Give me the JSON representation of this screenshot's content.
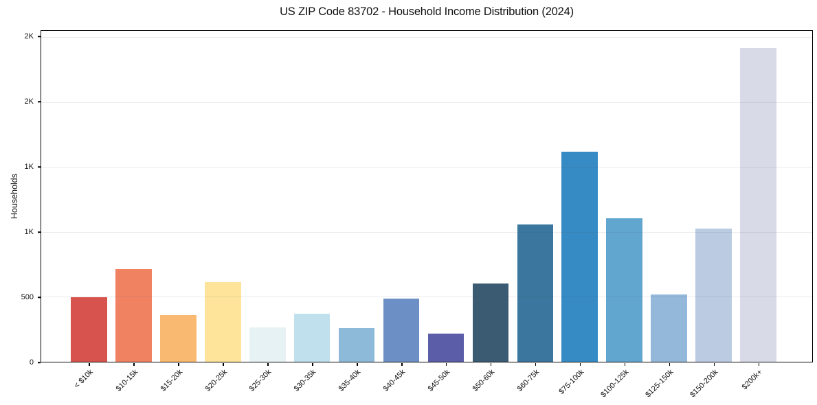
{
  "chart_data": {
    "type": "bar",
    "title": "US ZIP Code 83702 - Household Income Distribution (2024)",
    "xlabel": "",
    "ylabel": "Households",
    "categories": [
      "< $10k",
      "$10-15k",
      "$15-20k",
      "$20-25k",
      "$25-30k",
      "$30-35k",
      "$35-40k",
      "$40-45k",
      "$45-50k",
      "$50-60k",
      "$60-75k",
      "$75-100k",
      "$100-125k",
      "$125-150k",
      "$150-200k",
      "$200k+"
    ],
    "values": [
      500,
      715,
      360,
      615,
      265,
      370,
      260,
      485,
      215,
      605,
      1060,
      1620,
      1105,
      520,
      1025,
      2420
    ],
    "bar_colors": [
      "#d6534e",
      "#f08262",
      "#fab970",
      "#fde49a",
      "#e7f2f4",
      "#bfe0ec",
      "#8ebada",
      "#6c90c5",
      "#5c5da9",
      "#3a5b72",
      "#3a769d",
      "#368bc4",
      "#60a6ce",
      "#93b8da",
      "#bacbe2",
      "#d8dae8"
    ],
    "yticks": [
      {
        "value": 0,
        "label": "0"
      },
      {
        "value": 500,
        "label": "500"
      },
      {
        "value": 1000,
        "label": "1K"
      },
      {
        "value": 1500,
        "label": "1K"
      },
      {
        "value": 2000,
        "label": "2K"
      },
      {
        "value": 2500,
        "label": "2K"
      }
    ],
    "ylim": [
      0,
      2550
    ],
    "grid": true,
    "legend": false,
    "x_tick_rotation_deg": 45
  }
}
